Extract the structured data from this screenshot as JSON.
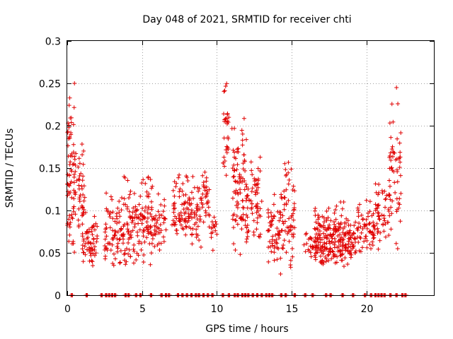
{
  "chart_data": {
    "type": "scatter",
    "title": "Day 048 of 2021, SRMTID for receiver chti",
    "xlabel": "GPS time / hours",
    "ylabel": "SRMTID / TECUs",
    "xlim": [
      0,
      24.5
    ],
    "ylim": [
      0,
      0.3
    ],
    "x_ticks": [
      0,
      5,
      10,
      15,
      20
    ],
    "y_ticks": [
      0,
      0.05,
      0.1,
      0.15,
      0.2,
      0.25,
      0.3
    ],
    "x_tick_labels": [
      "0",
      "5",
      "10",
      "15",
      "20"
    ],
    "y_tick_labels": [
      "0",
      "0.05",
      "0.1",
      "0.15",
      "0.2",
      "0.25",
      "0.3"
    ],
    "grid": true,
    "marker": "plus",
    "color": "#e00000",
    "series": [
      {
        "name": "SRMTID",
        "clusters": [
          {
            "x": [
              0.0,
              0.5
            ],
            "y": [
              0.03,
              0.25
            ],
            "n": 70
          },
          {
            "x": [
              0.5,
              1.2
            ],
            "y": [
              0.04,
              0.2
            ],
            "n": 50
          },
          {
            "x": [
              1.0,
              2.0
            ],
            "y": [
              0.03,
              0.1
            ],
            "n": 60
          },
          {
            "x": [
              2.5,
              3.5
            ],
            "y": [
              0.03,
              0.13
            ],
            "n": 60
          },
          {
            "x": [
              3.5,
              4.5
            ],
            "y": [
              0.03,
              0.14
            ],
            "n": 70
          },
          {
            "x": [
              4.5,
              5.8
            ],
            "y": [
              0.03,
              0.15
            ],
            "n": 90
          },
          {
            "x": [
              5.8,
              6.6
            ],
            "y": [
              0.05,
              0.12
            ],
            "n": 40
          },
          {
            "x": [
              7.0,
              8.0
            ],
            "y": [
              0.06,
              0.16
            ],
            "n": 60
          },
          {
            "x": [
              8.0,
              9.0
            ],
            "y": [
              0.05,
              0.14
            ],
            "n": 60
          },
          {
            "x": [
              9.0,
              9.5
            ],
            "y": [
              0.07,
              0.16
            ],
            "n": 30
          },
          {
            "x": [
              9.6,
              10.0
            ],
            "y": [
              0.05,
              0.1
            ],
            "n": 15
          },
          {
            "x": [
              10.4,
              10.8
            ],
            "y": [
              0.13,
              0.255
            ],
            "n": 30
          },
          {
            "x": [
              11.0,
              12.0
            ],
            "y": [
              0.04,
              0.23
            ],
            "n": 90
          },
          {
            "x": [
              12.0,
              13.0
            ],
            "y": [
              0.05,
              0.18
            ],
            "n": 60
          },
          {
            "x": [
              13.4,
              14.2
            ],
            "y": [
              0.03,
              0.12
            ],
            "n": 50
          },
          {
            "x": [
              14.2,
              15.2
            ],
            "y": [
              0.02,
              0.17
            ],
            "n": 70
          },
          {
            "x": [
              15.8,
              16.5
            ],
            "y": [
              0.04,
              0.08
            ],
            "n": 20
          },
          {
            "x": [
              16.5,
              18.5
            ],
            "y": [
              0.03,
              0.11
            ],
            "n": 200
          },
          {
            "x": [
              18.5,
              19.3
            ],
            "y": [
              0.03,
              0.1
            ],
            "n": 60
          },
          {
            "x": [
              19.3,
              20.5
            ],
            "y": [
              0.04,
              0.12
            ],
            "n": 60
          },
          {
            "x": [
              20.5,
              21.5
            ],
            "y": [
              0.05,
              0.15
            ],
            "n": 50
          },
          {
            "x": [
              21.5,
              22.3
            ],
            "y": [
              0.05,
              0.245
            ],
            "n": 60
          }
        ],
        "zero_x": [
          0.3,
          1.3,
          2.3,
          2.6,
          2.8,
          3.0,
          3.2,
          3.9,
          4.1,
          4.6,
          4.9,
          5.6,
          6.3,
          6.6,
          6.8,
          7.4,
          7.7,
          8.0,
          8.3,
          8.6,
          8.8,
          9.1,
          9.4,
          9.7,
          10.4,
          10.8,
          11.2,
          11.4,
          11.7,
          11.9,
          12.1,
          12.4,
          12.7,
          13.0,
          13.3,
          13.5,
          13.7,
          14.3,
          14.6,
          15.2,
          15.9,
          16.4,
          17.3,
          17.6,
          18.4,
          19.1,
          19.9,
          20.3,
          20.6,
          20.8,
          21.0,
          21.2,
          21.6,
          22.0,
          22.4,
          22.6
        ]
      }
    ]
  }
}
